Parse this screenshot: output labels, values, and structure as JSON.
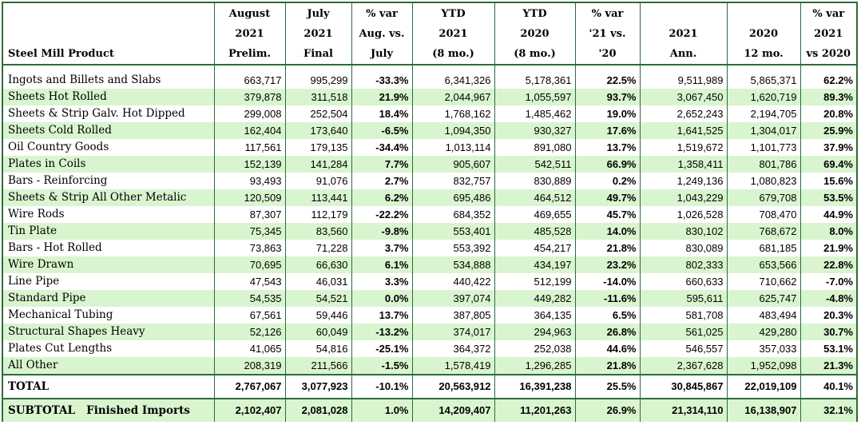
{
  "header": {
    "product": "Steel Mill Product",
    "cols": [
      [
        "August",
        "2021",
        "Prelim."
      ],
      [
        "July",
        "2021",
        "Final"
      ],
      [
        "% var",
        "Aug. vs.",
        "July"
      ],
      [
        "YTD",
        "2021",
        "(8 mo.)"
      ],
      [
        "YTD",
        "2020",
        "(8 mo.)"
      ],
      [
        "% var",
        "'21 vs.",
        "'20"
      ],
      [
        "",
        "2021",
        "Ann."
      ],
      [
        "",
        "2020",
        "12 mo."
      ],
      [
        "% var",
        "2021",
        "vs 2020"
      ]
    ]
  },
  "rows": [
    [
      "Ingots and Billets and Slabs",
      "663,717",
      "995,299",
      "-33.3%",
      "6,341,326",
      "5,178,361",
      "22.5%",
      "9,511,989",
      "5,865,371",
      "62.2%"
    ],
    [
      "Sheets Hot Rolled",
      "379,878",
      "311,518",
      "21.9%",
      "2,044,967",
      "1,055,597",
      "93.7%",
      "3,067,450",
      "1,620,719",
      "89.3%"
    ],
    [
      "Sheets & Strip Galv. Hot Dipped",
      "299,008",
      "252,504",
      "18.4%",
      "1,768,162",
      "1,485,462",
      "19.0%",
      "2,652,243",
      "2,194,705",
      "20.8%"
    ],
    [
      "Sheets Cold Rolled",
      "162,404",
      "173,640",
      "-6.5%",
      "1,094,350",
      "930,327",
      "17.6%",
      "1,641,525",
      "1,304,017",
      "25.9%"
    ],
    [
      "Oil Country Goods",
      "117,561",
      "179,135",
      "-34.4%",
      "1,013,114",
      "891,080",
      "13.7%",
      "1,519,672",
      "1,101,773",
      "37.9%"
    ],
    [
      "Plates in Coils",
      "152,139",
      "141,284",
      "7.7%",
      "905,607",
      "542,511",
      "66.9%",
      "1,358,411",
      "801,786",
      "69.4%"
    ],
    [
      "Bars - Reinforcing",
      "93,493",
      "91,076",
      "2.7%",
      "832,757",
      "830,889",
      "0.2%",
      "1,249,136",
      "1,080,823",
      "15.6%"
    ],
    [
      "Sheets & Strip All Other Metalic",
      "120,509",
      "113,441",
      "6.2%",
      "695,486",
      "464,512",
      "49.7%",
      "1,043,229",
      "679,708",
      "53.5%"
    ],
    [
      "Wire Rods",
      "87,307",
      "112,179",
      "-22.2%",
      "684,352",
      "469,655",
      "45.7%",
      "1,026,528",
      "708,470",
      "44.9%"
    ],
    [
      "Tin Plate",
      "75,345",
      "83,560",
      "-9.8%",
      "553,401",
      "485,528",
      "14.0%",
      "830,102",
      "768,672",
      "8.0%"
    ],
    [
      "Bars - Hot Rolled",
      "73,863",
      "71,228",
      "3.7%",
      "553,392",
      "454,217",
      "21.8%",
      "830,089",
      "681,185",
      "21.9%"
    ],
    [
      "Wire Drawn",
      "70,695",
      "66,630",
      "6.1%",
      "534,888",
      "434,197",
      "23.2%",
      "802,333",
      "653,566",
      "22.8%"
    ],
    [
      "Line Pipe",
      "47,543",
      "46,031",
      "3.3%",
      "440,422",
      "512,199",
      "-14.0%",
      "660,633",
      "710,662",
      "-7.0%"
    ],
    [
      "Standard Pipe",
      "54,535",
      "54,521",
      "0.0%",
      "397,074",
      "449,282",
      "-11.6%",
      "595,611",
      "625,747",
      "-4.8%"
    ],
    [
      "Mechanical Tubing",
      "67,561",
      "59,446",
      "13.7%",
      "387,805",
      "364,135",
      "6.5%",
      "581,708",
      "483,494",
      "20.3%"
    ],
    [
      "Structural Shapes Heavy",
      "52,126",
      "60,049",
      "-13.2%",
      "374,017",
      "294,963",
      "26.8%",
      "561,025",
      "429,280",
      "30.7%"
    ],
    [
      "Plates Cut Lengths",
      "41,065",
      "54,816",
      "-25.1%",
      "364,372",
      "252,038",
      "44.6%",
      "546,557",
      "357,033",
      "53.1%"
    ],
    [
      "All Other",
      "208,319",
      "211,566",
      "-1.5%",
      "1,578,419",
      "1,296,285",
      "21.8%",
      "2,367,628",
      "1,952,098",
      "21.3%"
    ]
  ],
  "total": [
    "TOTAL",
    "2,767,067",
    "3,077,923",
    "-10.1%",
    "20,563,912",
    "16,391,238",
    "25.5%",
    "30,845,867",
    "22,019,109",
    "40.1%"
  ],
  "subtotal": [
    "SUBTOTAL   Finished Imports",
    "2,102,407",
    "2,081,028",
    "1.0%",
    "14,209,407",
    "11,201,263",
    "26.9%",
    "21,314,110",
    "16,138,907",
    "32.1%"
  ],
  "colors": {
    "row_highlight": "#d9f5cf",
    "rule": "#2e6b3a"
  }
}
